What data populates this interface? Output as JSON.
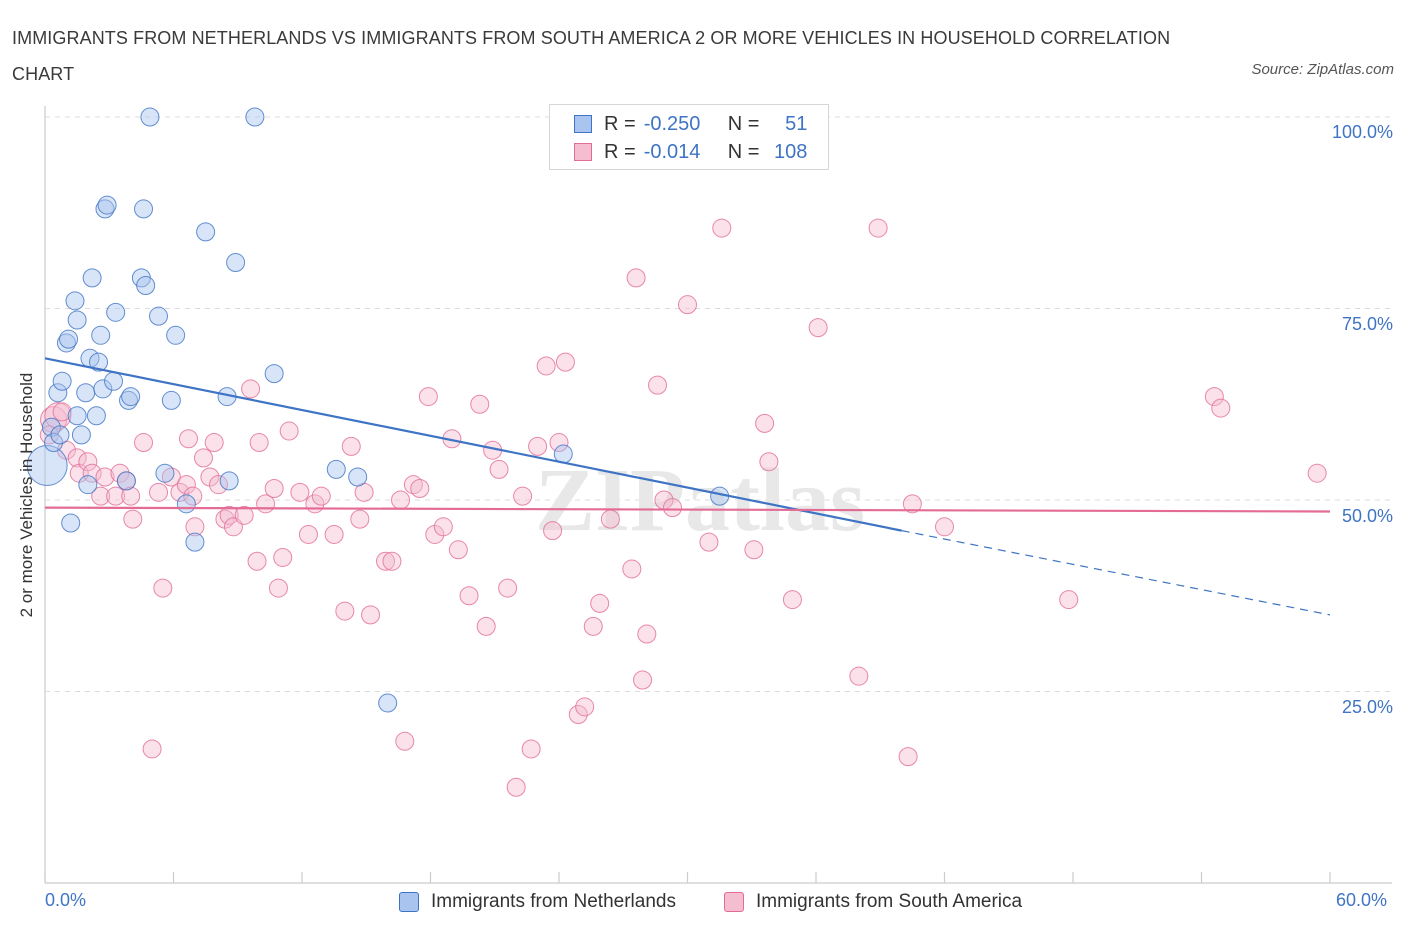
{
  "title": "IMMIGRANTS FROM NETHERLANDS VS IMMIGRANTS FROM SOUTH AMERICA 2 OR MORE VEHICLES IN HOUSEHOLD CORRELATION CHART",
  "source": "Source: ZipAtlas.com",
  "watermark": "ZIPatlas",
  "colors": {
    "blue": "#3f74c4",
    "blue_fill": "#a9c4ee",
    "pink": "#e36b96",
    "pink_fill": "#f4bdd0"
  },
  "legend": {
    "blue": {
      "r_label": "R =",
      "r_value": "-0.250",
      "n_label": "N =",
      "n_value": "51"
    },
    "pink": {
      "r_label": "R =",
      "r_value": "-0.014",
      "n_label": "N =",
      "n_value": "108"
    }
  },
  "bottom_legend": {
    "blue": "Immigrants from Netherlands",
    "pink": "Immigrants from South America"
  },
  "x_tick_labels": {
    "min": "0.0%",
    "max": "60.0%"
  },
  "y_tick_labels": [
    "100.0%",
    "75.0%",
    "50.0%",
    "25.0%"
  ],
  "chart_data": {
    "type": "scatter",
    "title": "IMMIGRANTS FROM NETHERLANDS VS IMMIGRANTS FROM SOUTH AMERICA 2 OR MORE VEHICLES IN HOUSEHOLD CORRELATION CHART",
    "xlabel": "",
    "ylabel": "2 or more Vehicles in Household",
    "xlim": [
      0,
      60
    ],
    "ylim": [
      0,
      102
    ],
    "y_ticks": [
      25,
      50,
      75,
      100
    ],
    "grid": "horizontal dashed",
    "series": [
      {
        "name": "Immigrants from Netherlands",
        "R": -0.25,
        "N": 51,
        "trend": {
          "x_solid": [
            0,
            40
          ],
          "y_solid": [
            68.5,
            46
          ],
          "x_dashed": [
            40,
            60
          ],
          "y_dashed": [
            46,
            35
          ]
        },
        "points": [
          [
            0.1,
            54.5
          ],
          [
            0.3,
            59.5
          ],
          [
            0.4,
            57.5
          ],
          [
            0.6,
            64
          ],
          [
            0.7,
            58.5
          ],
          [
            0.8,
            65.5
          ],
          [
            1.0,
            70.5
          ],
          [
            1.1,
            71
          ],
          [
            1.2,
            47
          ],
          [
            1.4,
            76
          ],
          [
            1.5,
            73.5
          ],
          [
            1.5,
            61
          ],
          [
            1.7,
            58.5
          ],
          [
            1.9,
            64
          ],
          [
            2.0,
            52
          ],
          [
            2.1,
            68.5
          ],
          [
            2.2,
            79
          ],
          [
            2.4,
            61
          ],
          [
            2.5,
            68
          ],
          [
            2.6,
            71.5
          ],
          [
            2.7,
            64.5
          ],
          [
            2.8,
            88
          ],
          [
            2.9,
            88.5
          ],
          [
            3.2,
            65.5
          ],
          [
            3.3,
            74.5
          ],
          [
            3.8,
            52.5
          ],
          [
            3.9,
            63
          ],
          [
            4.0,
            63.5
          ],
          [
            4.5,
            79
          ],
          [
            4.6,
            88
          ],
          [
            4.7,
            78
          ],
          [
            4.9,
            100
          ],
          [
            5.3,
            74
          ],
          [
            5.6,
            53.5
          ],
          [
            5.9,
            63
          ],
          [
            6.1,
            71.5
          ],
          [
            6.6,
            49.5
          ],
          [
            7.0,
            44.5
          ],
          [
            7.5,
            85
          ],
          [
            8.5,
            63.5
          ],
          [
            8.6,
            52.5
          ],
          [
            8.9,
            81
          ],
          [
            9.8,
            100
          ],
          [
            10.7,
            66.5
          ],
          [
            13.6,
            54
          ],
          [
            14.6,
            53
          ],
          [
            16.0,
            23.5
          ],
          [
            24.2,
            56
          ],
          [
            31.5,
            50.5
          ]
        ]
      },
      {
        "name": "Immigrants from South America",
        "R": -0.014,
        "N": 108,
        "trend": {
          "x": [
            0,
            60
          ],
          "y": [
            49,
            48.5
          ]
        },
        "points": [
          [
            0.4,
            60.5
          ],
          [
            0.6,
            61
          ],
          [
            1.0,
            56.5
          ],
          [
            1.5,
            55.5
          ],
          [
            1.6,
            53.5
          ],
          [
            2.0,
            55
          ],
          [
            2.2,
            53.5
          ],
          [
            2.6,
            50.5
          ],
          [
            2.8,
            53
          ],
          [
            3.3,
            50.5
          ],
          [
            3.5,
            53.5
          ],
          [
            3.8,
            52.5
          ],
          [
            4.0,
            50.5
          ],
          [
            4.1,
            47.5
          ],
          [
            4.6,
            57.5
          ],
          [
            5.0,
            17.5
          ],
          [
            5.3,
            51
          ],
          [
            5.5,
            38.5
          ],
          [
            5.9,
            53
          ],
          [
            6.3,
            51
          ],
          [
            6.6,
            52
          ],
          [
            6.7,
            58
          ],
          [
            6.9,
            50.5
          ],
          [
            7.0,
            46.5
          ],
          [
            7.4,
            55.5
          ],
          [
            7.7,
            53
          ],
          [
            7.9,
            57.5
          ],
          [
            8.1,
            52
          ],
          [
            8.4,
            47.5
          ],
          [
            8.6,
            48
          ],
          [
            8.8,
            46.5
          ],
          [
            9.3,
            48
          ],
          [
            9.6,
            64.5
          ],
          [
            9.9,
            42
          ],
          [
            10.0,
            57.5
          ],
          [
            10.3,
            49.5
          ],
          [
            10.7,
            51.5
          ],
          [
            10.9,
            38.5
          ],
          [
            11.1,
            42.5
          ],
          [
            11.4,
            59
          ],
          [
            11.9,
            51
          ],
          [
            12.3,
            45.5
          ],
          [
            12.6,
            49.5
          ],
          [
            12.9,
            50.5
          ],
          [
            13.5,
            45.5
          ],
          [
            14.0,
            35.5
          ],
          [
            14.3,
            57
          ],
          [
            14.7,
            47.5
          ],
          [
            14.9,
            51
          ],
          [
            15.2,
            35
          ],
          [
            15.9,
            42
          ],
          [
            16.2,
            42
          ],
          [
            16.6,
            50
          ],
          [
            16.8,
            18.5
          ],
          [
            17.2,
            52
          ],
          [
            17.5,
            51.5
          ],
          [
            17.9,
            63.5
          ],
          [
            18.2,
            45.5
          ],
          [
            18.6,
            46.5
          ],
          [
            19.0,
            58
          ],
          [
            19.3,
            43.5
          ],
          [
            19.8,
            37.5
          ],
          [
            20.3,
            62.5
          ],
          [
            20.6,
            33.5
          ],
          [
            20.9,
            56.5
          ],
          [
            21.2,
            54
          ],
          [
            21.6,
            38.5
          ],
          [
            22.0,
            12.5
          ],
          [
            22.3,
            50.5
          ],
          [
            22.7,
            17.5
          ],
          [
            23.0,
            57
          ],
          [
            23.4,
            67.5
          ],
          [
            23.7,
            46
          ],
          [
            24.0,
            57.5
          ],
          [
            24.3,
            68
          ],
          [
            24.9,
            22
          ],
          [
            25.2,
            23
          ],
          [
            25.6,
            33.5
          ],
          [
            25.9,
            36.5
          ],
          [
            26.4,
            47.5
          ],
          [
            27.4,
            41
          ],
          [
            27.6,
            79
          ],
          [
            27.9,
            26.5
          ],
          [
            28.1,
            32.5
          ],
          [
            28.6,
            65
          ],
          [
            28.9,
            50
          ],
          [
            29.3,
            49
          ],
          [
            30.0,
            75.5
          ],
          [
            31.0,
            44.5
          ],
          [
            31.6,
            85.5
          ],
          [
            33.1,
            43.5
          ],
          [
            33.6,
            60
          ],
          [
            33.8,
            55
          ],
          [
            34.9,
            37
          ],
          [
            36.1,
            72.5
          ],
          [
            38.0,
            27
          ],
          [
            38.9,
            85.5
          ],
          [
            40.3,
            16.5
          ],
          [
            40.5,
            49.5
          ],
          [
            42.0,
            46.5
          ],
          [
            47.8,
            37
          ],
          [
            54.6,
            63.5
          ],
          [
            54.9,
            62
          ],
          [
            59.4,
            53.5
          ],
          [
            0.2,
            58.5
          ],
          [
            0.8,
            61.5
          ]
        ]
      }
    ]
  }
}
